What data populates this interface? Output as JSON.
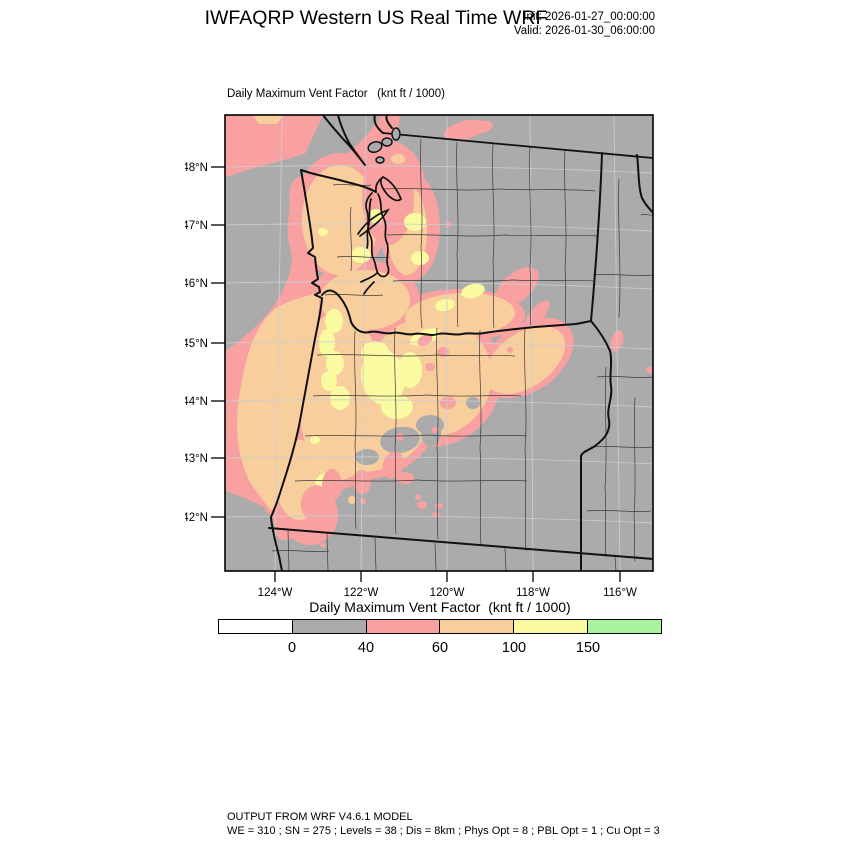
{
  "header": {
    "title": "IWFAQRP Western US Real Time WRF",
    "init": "Init: 2026-01-27_00:00:00",
    "valid": "Valid: 2026-01-30_06:00:00"
  },
  "map": {
    "subtitle": "Daily Maximum Vent Factor   (knt ft / 1000)",
    "lat_ticks": [
      "48°N",
      "47°N",
      "46°N",
      "45°N",
      "44°N",
      "43°N",
      "42°N"
    ],
    "lon_ticks": [
      "124°W",
      "122°W",
      "120°W",
      "118°W",
      "116°W"
    ],
    "region": "Pacific Northwest (WA, OR, ID, parts of BC/MT/CA/NV)"
  },
  "colorbar": {
    "title": "Daily Maximum Vent Factor  (knt ft / 1000)",
    "tick_labels": [
      "0",
      "40",
      "60",
      "100",
      "150"
    ],
    "segments": [
      {
        "name": "below-0",
        "color": "#ffffff"
      },
      {
        "name": "0-40",
        "color": "#ababab"
      },
      {
        "name": "40-60",
        "color": "#f9a1a1"
      },
      {
        "name": "60-100",
        "color": "#f8ce9c"
      },
      {
        "name": "100-150",
        "color": "#fafaa0"
      },
      {
        "name": "above-150",
        "color": "#a8f2a0"
      }
    ]
  },
  "footer": {
    "line1": "OUTPUT FROM WRF V4.6.1 MODEL",
    "line2": "WE = 310 ; SN = 275 ; Levels = 38 ; Dis = 8km ; Phys Opt = 8 ; PBL Opt = 1 ; Cu Opt = 3"
  }
}
